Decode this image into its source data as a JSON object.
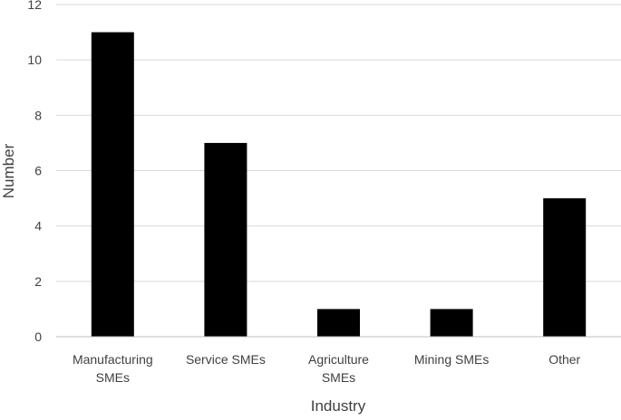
{
  "chart_data": {
    "type": "bar",
    "title": "",
    "xlabel": "Industry",
    "ylabel": "Number",
    "categories": [
      [
        "Manufacturing",
        "SMEs"
      ],
      [
        "Service SMEs"
      ],
      [
        "Agriculture",
        "SMEs"
      ],
      [
        "Mining SMEs"
      ],
      [
        "Other"
      ]
    ],
    "values": [
      11,
      7,
      1,
      1,
      5
    ],
    "ylim": [
      0,
      12
    ],
    "yticks": [
      0,
      2,
      4,
      6,
      8,
      10,
      12
    ],
    "grid": true,
    "legend": "none",
    "bar_color": "#000000",
    "grid_color": "#d9d9d9",
    "axis_color": "#bfbfbf",
    "text_color": "#404040"
  }
}
